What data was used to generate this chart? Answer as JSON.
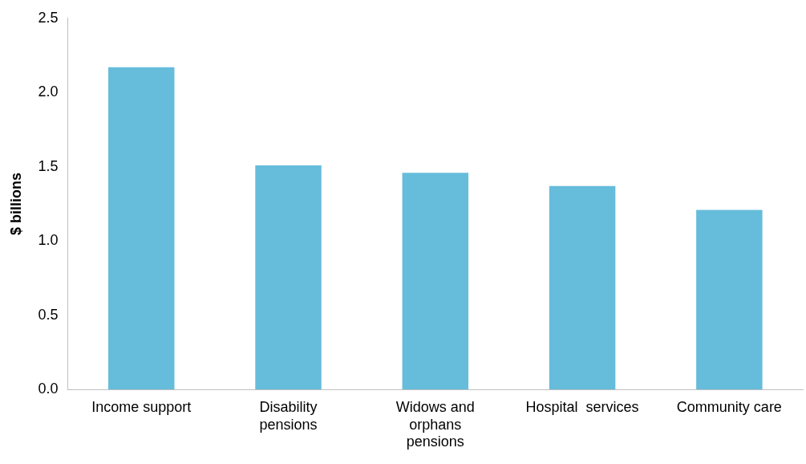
{
  "chart_data": {
    "type": "bar",
    "ylabel": "$ billions",
    "categories": [
      "Income support",
      "Disability\npensions",
      "Widows and\norphans\npensions",
      "Hospital  services",
      "Community care"
    ],
    "values": [
      2.17,
      1.51,
      1.46,
      1.37,
      1.21
    ],
    "color": "#66bcdb",
    "ylim": [
      0,
      2.5
    ],
    "yticks": [
      {
        "value": 0,
        "label": "0.0"
      },
      {
        "value": 0.5,
        "label": "0.5"
      },
      {
        "value": 1,
        "label": "1.0"
      },
      {
        "value": 1.5,
        "label": "1.5"
      },
      {
        "value": 2,
        "label": "2.0"
      },
      {
        "value": 2.5,
        "label": "2.5"
      }
    ],
    "grid": false,
    "legend": false
  }
}
